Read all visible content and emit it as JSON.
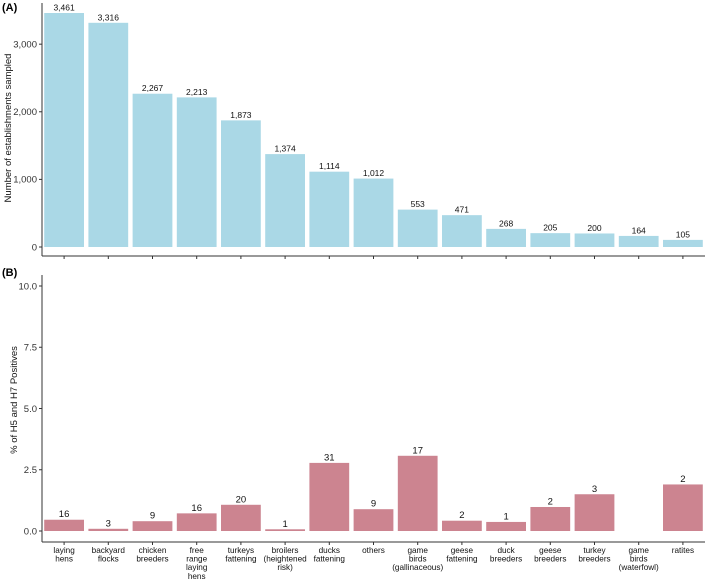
{
  "chart_data": [
    {
      "panel": "(A)",
      "type": "bar",
      "ylabel": "Number of establishments sampled",
      "xlabel": "",
      "ylim": [
        0,
        3461
      ],
      "yticks": [
        0,
        1000,
        2000,
        3000
      ],
      "ytick_labels": [
        "0",
        "1,000",
        "2,000",
        "3,000"
      ],
      "grid": false,
      "color": "#aad8e6",
      "categories": [
        "laying hens",
        "backyard flocks",
        "chicken breeders",
        "free range laying hens",
        "turkeys fattening",
        "broilers (heightened risk)",
        "ducks fattening",
        "others",
        "game birds (gallinaceous)",
        "geese fattening",
        "duck breeders",
        "geese breeders",
        "turkey breeders",
        "game birds (waterfowl)",
        "ratites"
      ],
      "values": [
        3461,
        3316,
        2267,
        2213,
        1873,
        1374,
        1114,
        1012,
        553,
        471,
        268,
        205,
        200,
        164,
        105
      ],
      "labels": [
        "3,461",
        "3,316",
        "2,267",
        "2,213",
        "1,873",
        "1,374",
        "1,114",
        "1,012",
        "553",
        "471",
        "268",
        "205",
        "200",
        "164",
        "105"
      ]
    },
    {
      "panel": "(B)",
      "type": "bar",
      "ylabel": "% of H5 and H7 Positives",
      "xlabel": "",
      "ylim": [
        0,
        10
      ],
      "yticks": [
        0,
        2.5,
        5,
        7.5,
        10
      ],
      "ytick_labels": [
        "0.0",
        "2.5",
        "5.0",
        "7.5",
        "10.0"
      ],
      "grid": false,
      "color": "#cc8490",
      "categories": [
        "laying\nhens",
        "backyard\nflocks",
        "chicken\nbreeders",
        "free\nrange\nlaying\nhens",
        "turkeys\nfattening",
        "broilers\n(heightened\nrisk)",
        "ducks\nfattening",
        "others",
        "game\nbirds\n(gallinaceous)",
        "geese\nfattening",
        "duck\nbreeders",
        "geese\nbreeders",
        "turkey\nbreeders",
        "game\nbirds\n(waterfowl)",
        "ratites"
      ],
      "values": [
        0.46,
        0.09,
        0.4,
        0.72,
        1.07,
        0.07,
        2.78,
        0.89,
        3.07,
        0.42,
        0.37,
        0.98,
        1.5,
        0,
        1.9
      ],
      "labels": [
        "16",
        "3",
        "9",
        "16",
        "20",
        "1",
        "31",
        "9",
        "17",
        "2",
        "1",
        "2",
        "3",
        "",
        "2"
      ]
    }
  ]
}
